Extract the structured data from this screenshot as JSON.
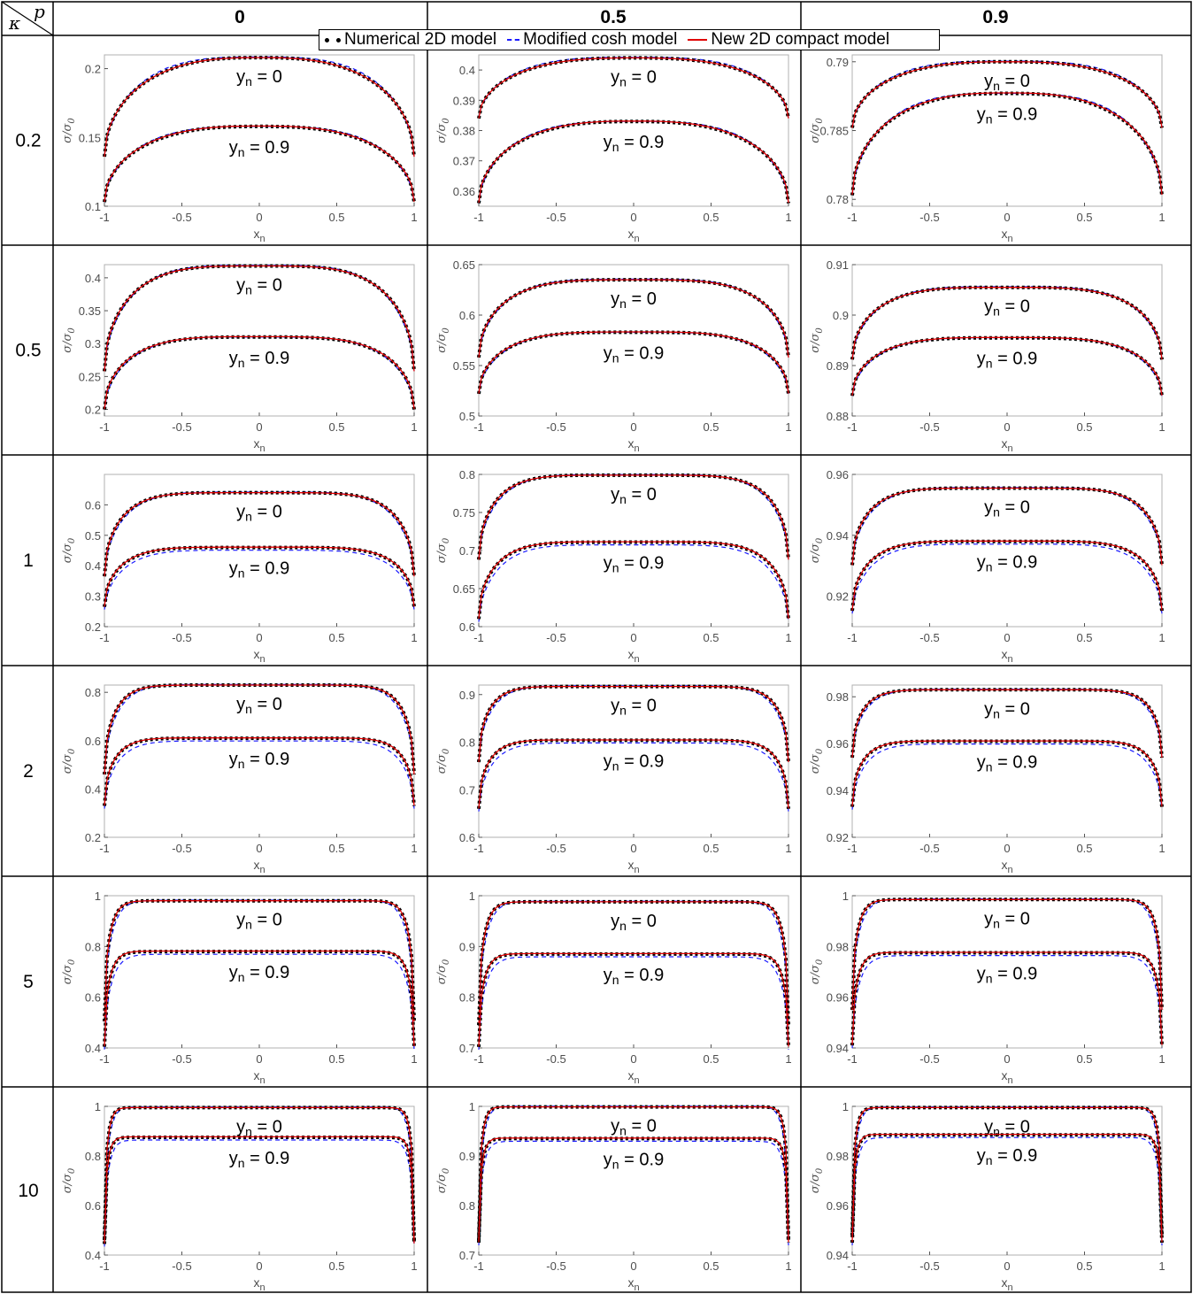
{
  "header": {
    "corner_kappa": "κ",
    "corner_p": "p",
    "column_labels": [
      "0",
      "0.5",
      "0.9"
    ],
    "row_labels": [
      "0.2",
      "0.5",
      "1",
      "2",
      "5",
      "10"
    ]
  },
  "legend": {
    "numerical": "Numerical 2D model",
    "cosh": "Modified cosh model",
    "compact": "New 2D compact model"
  },
  "colors": {
    "numerical": "#000000",
    "cosh": "#1a1aff",
    "compact": "#e00000",
    "axis": "#4d4d4d",
    "frame": "#000000"
  },
  "axis_text": {
    "xlabel": "x",
    "xlabel_sub": "n",
    "ylabel": "σ/σ",
    "ylabel_sub": "0"
  },
  "curve_label_top": "y_n = 0",
  "curve_label_bottom": "y_n = 0.9",
  "chart_data": [
    {
      "type": "line",
      "row_kappa": "0.2",
      "col_p": "0",
      "xlim": [
        -1,
        1
      ],
      "ylim": [
        0.1,
        0.21
      ],
      "yticks": [
        "0.1",
        "0.15",
        "0.2"
      ],
      "xticks": [
        "-1",
        "-0.5",
        "0",
        "0.5",
        "1"
      ],
      "series": [
        {
          "name": "Numerical 2D model",
          "yn": "0",
          "center": 0.208,
          "edge": 0.136
        },
        {
          "name": "Numerical 2D model",
          "yn": "0.9",
          "center": 0.158,
          "edge": 0.103
        }
      ]
    },
    {
      "type": "line",
      "row_kappa": "0.2",
      "col_p": "0.5",
      "xlim": [
        -1,
        1
      ],
      "ylim": [
        0.355,
        0.405
      ],
      "yticks": [
        "0.36",
        "0.37",
        "0.38",
        "0.39",
        "0.4"
      ],
      "xticks": [
        "-1",
        "-0.5",
        "0",
        "0.5",
        "1"
      ],
      "series": [
        {
          "name": "Numerical 2D model",
          "yn": "0",
          "center": 0.404,
          "edge": 0.384
        },
        {
          "name": "Numerical 2D model",
          "yn": "0.9",
          "center": 0.383,
          "edge": 0.356
        }
      ]
    },
    {
      "type": "line",
      "row_kappa": "0.2",
      "col_p": "0.9",
      "xlim": [
        -1,
        1
      ],
      "ylim": [
        0.7795,
        0.7905
      ],
      "yticks": [
        "0.78",
        "0.785",
        "0.79"
      ],
      "xticks": [
        "-1",
        "-0.5",
        "0",
        "0.5",
        "1"
      ],
      "series": [
        {
          "name": "Numerical 2D model",
          "yn": "0",
          "center": 0.79,
          "edge": 0.7852
        },
        {
          "name": "Numerical 2D model",
          "yn": "0.9",
          "center": 0.7877,
          "edge": 0.7803
        }
      ]
    },
    {
      "type": "line",
      "row_kappa": "0.5",
      "col_p": "0",
      "xlim": [
        -1,
        1
      ],
      "ylim": [
        0.19,
        0.42
      ],
      "yticks": [
        "0.2",
        "0.25",
        "0.3",
        "0.35",
        "0.4"
      ],
      "xticks": [
        "-1",
        "-0.5",
        "0",
        "0.5",
        "1"
      ],
      "series": [
        {
          "name": "Numerical 2D model",
          "yn": "0",
          "center": 0.418,
          "edge": 0.258
        },
        {
          "name": "Numerical 2D model",
          "yn": "0.9",
          "center": 0.31,
          "edge": 0.2
        }
      ]
    },
    {
      "type": "line",
      "row_kappa": "0.5",
      "col_p": "0.5",
      "xlim": [
        -1,
        1
      ],
      "ylim": [
        0.5,
        0.65
      ],
      "yticks": [
        "0.5",
        "0.55",
        "0.6",
        "0.65"
      ],
      "xticks": [
        "-1",
        "-0.5",
        "0",
        "0.5",
        "1"
      ],
      "series": [
        {
          "name": "Numerical 2D model",
          "yn": "0",
          "center": 0.635,
          "edge": 0.558
        },
        {
          "name": "Numerical 2D model",
          "yn": "0.9",
          "center": 0.583,
          "edge": 0.522
        }
      ]
    },
    {
      "type": "line",
      "row_kappa": "0.5",
      "col_p": "0.9",
      "xlim": [
        -1,
        1
      ],
      "ylim": [
        0.88,
        0.91
      ],
      "yticks": [
        "0.88",
        "0.89",
        "0.9",
        "0.91"
      ],
      "xticks": [
        "-1",
        "-0.5",
        "0",
        "0.5",
        "1"
      ],
      "series": [
        {
          "name": "Numerical 2D model",
          "yn": "0",
          "center": 0.9055,
          "edge": 0.8912
        },
        {
          "name": "Numerical 2D model",
          "yn": "0.9",
          "center": 0.8955,
          "edge": 0.884
        }
      ]
    },
    {
      "type": "line",
      "row_kappa": "1",
      "col_p": "0",
      "xlim": [
        -1,
        1
      ],
      "ylim": [
        0.2,
        0.7
      ],
      "yticks": [
        "0.2",
        "0.3",
        "0.4",
        "0.5",
        "0.6"
      ],
      "xticks": [
        "-1",
        "-0.5",
        "0",
        "0.5",
        "1"
      ],
      "series": [
        {
          "name": "Numerical 2D model",
          "yn": "0",
          "center": 0.64,
          "edge": 0.365
        },
        {
          "name": "Numerical 2D model",
          "yn": "0.9",
          "center": 0.46,
          "edge": 0.265
        }
      ]
    },
    {
      "type": "line",
      "row_kappa": "1",
      "col_p": "0.5",
      "xlim": [
        -1,
        1
      ],
      "ylim": [
        0.6,
        0.8
      ],
      "yticks": [
        "0.6",
        "0.65",
        "0.7",
        "0.75",
        "0.8"
      ],
      "xticks": [
        "-1",
        "-0.5",
        "0",
        "0.5",
        "1"
      ],
      "series": [
        {
          "name": "Numerical 2D model",
          "yn": "0",
          "center": 0.799,
          "edge": 0.688
        },
        {
          "name": "Numerical 2D model",
          "yn": "0.9",
          "center": 0.711,
          "edge": 0.61
        }
      ]
    },
    {
      "type": "line",
      "row_kappa": "1",
      "col_p": "0.9",
      "xlim": [
        -1,
        1
      ],
      "ylim": [
        0.91,
        0.96
      ],
      "yticks": [
        "0.92",
        "0.94",
        "0.96"
      ],
      "xticks": [
        "-1",
        "-0.5",
        "0",
        "0.5",
        "1"
      ],
      "series": [
        {
          "name": "Numerical 2D model",
          "yn": "0",
          "center": 0.9555,
          "edge": 0.9302
        },
        {
          "name": "Numerical 2D model",
          "yn": "0.9",
          "center": 0.938,
          "edge": 0.9152
        }
      ]
    },
    {
      "type": "line",
      "row_kappa": "2",
      "col_p": "0",
      "xlim": [
        -1,
        1
      ],
      "ylim": [
        0.2,
        0.83
      ],
      "yticks": [
        "0.2",
        "0.4",
        "0.6",
        "0.8"
      ],
      "xticks": [
        "-1",
        "-0.5",
        "0",
        "0.5",
        "1"
      ],
      "series": [
        {
          "name": "Numerical 2D model",
          "yn": "0",
          "center": 0.83,
          "edge": 0.46
        },
        {
          "name": "Numerical 2D model",
          "yn": "0.9",
          "center": 0.61,
          "edge": 0.33
        }
      ]
    },
    {
      "type": "line",
      "row_kappa": "2",
      "col_p": "0.5",
      "xlim": [
        -1,
        1
      ],
      "ylim": [
        0.6,
        0.92
      ],
      "yticks": [
        "0.6",
        "0.7",
        "0.8",
        "0.9"
      ],
      "xticks": [
        "-1",
        "-0.5",
        "0",
        "0.5",
        "1"
      ],
      "series": [
        {
          "name": "Numerical 2D model",
          "yn": "0",
          "center": 0.917,
          "edge": 0.758
        },
        {
          "name": "Numerical 2D model",
          "yn": "0.9",
          "center": 0.804,
          "edge": 0.66
        }
      ]
    },
    {
      "type": "line",
      "row_kappa": "2",
      "col_p": "0.9",
      "xlim": [
        -1,
        1
      ],
      "ylim": [
        0.92,
        0.985
      ],
      "yticks": [
        "0.92",
        "0.94",
        "0.96",
        "0.98"
      ],
      "xticks": [
        "-1",
        "-0.5",
        "0",
        "0.5",
        "1"
      ],
      "series": [
        {
          "name": "Numerical 2D model",
          "yn": "0",
          "center": 0.983,
          "edge": 0.954
        },
        {
          "name": "Numerical 2D model",
          "yn": "0.9",
          "center": 0.961,
          "edge": 0.933
        }
      ]
    },
    {
      "type": "line",
      "row_kappa": "5",
      "col_p": "0",
      "xlim": [
        -1,
        1
      ],
      "ylim": [
        0.4,
        1.0
      ],
      "yticks": [
        "0.4",
        "0.6",
        "0.8",
        "1"
      ],
      "xticks": [
        "-1",
        "-0.5",
        "0",
        "0.5",
        "1"
      ],
      "series": [
        {
          "name": "Numerical 2D model",
          "yn": "0",
          "center": 0.98,
          "edge": 0.505
        },
        {
          "name": "Numerical 2D model",
          "yn": "0.9",
          "center": 0.78,
          "edge": 0.405
        }
      ]
    },
    {
      "type": "line",
      "row_kappa": "5",
      "col_p": "0.5",
      "xlim": [
        -1,
        1
      ],
      "ylim": [
        0.7,
        1.0
      ],
      "yticks": [
        "0.7",
        "0.8",
        "0.9",
        "1"
      ],
      "xticks": [
        "-1",
        "-0.5",
        "0",
        "0.5",
        "1"
      ],
      "series": [
        {
          "name": "Numerical 2D model",
          "yn": "0",
          "center": 0.988,
          "edge": 0.745
        },
        {
          "name": "Numerical 2D model",
          "yn": "0.9",
          "center": 0.885,
          "edge": 0.702
        }
      ]
    },
    {
      "type": "line",
      "row_kappa": "5",
      "col_p": "0.9",
      "xlim": [
        -1,
        1
      ],
      "ylim": [
        0.94,
        1.0
      ],
      "yticks": [
        "0.94",
        "0.96",
        "0.98",
        "1"
      ],
      "xticks": [
        "-1",
        "-0.5",
        "0",
        "0.5",
        "1"
      ],
      "series": [
        {
          "name": "Numerical 2D model",
          "yn": "0",
          "center": 0.9985,
          "edge": 0.955
        },
        {
          "name": "Numerical 2D model",
          "yn": "0.9",
          "center": 0.9775,
          "edge": 0.941
        }
      ]
    },
    {
      "type": "line",
      "row_kappa": "10",
      "col_p": "0",
      "xlim": [
        -1,
        1
      ],
      "ylim": [
        0.4,
        1.0
      ],
      "yticks": [
        "0.4",
        "0.6",
        "0.8",
        "1"
      ],
      "xticks": [
        "-1",
        "-0.5",
        "0",
        "0.5",
        "1"
      ],
      "series": [
        {
          "name": "Numerical 2D model",
          "yn": "0",
          "center": 0.995,
          "edge": 0.46
        },
        {
          "name": "Numerical 2D model",
          "yn": "0.9",
          "center": 0.875,
          "edge": 0.445
        }
      ]
    },
    {
      "type": "line",
      "row_kappa": "10",
      "col_p": "0.5",
      "xlim": [
        -1,
        1
      ],
      "ylim": [
        0.7,
        1.0
      ],
      "yticks": [
        "0.7",
        "0.8",
        "0.9",
        "1"
      ],
      "xticks": [
        "-1",
        "-0.5",
        "0",
        "0.5",
        "1"
      ],
      "series": [
        {
          "name": "Numerical 2D model",
          "yn": "0",
          "center": 0.999,
          "edge": 0.73
        },
        {
          "name": "Numerical 2D model",
          "yn": "0.9",
          "center": 0.935,
          "edge": 0.725
        }
      ]
    },
    {
      "type": "line",
      "row_kappa": "10",
      "col_p": "0.9",
      "xlim": [
        -1,
        1
      ],
      "ylim": [
        0.94,
        1.0
      ],
      "yticks": [
        "0.94",
        "0.96",
        "0.98",
        "1"
      ],
      "xticks": [
        "-1",
        "-0.5",
        "0",
        "0.5",
        "1"
      ],
      "series": [
        {
          "name": "Numerical 2D model",
          "yn": "0",
          "center": 0.9995,
          "edge": 0.948
        },
        {
          "name": "Numerical 2D model",
          "yn": "0.9",
          "center": 0.9885,
          "edge": 0.945
        }
      ]
    }
  ]
}
